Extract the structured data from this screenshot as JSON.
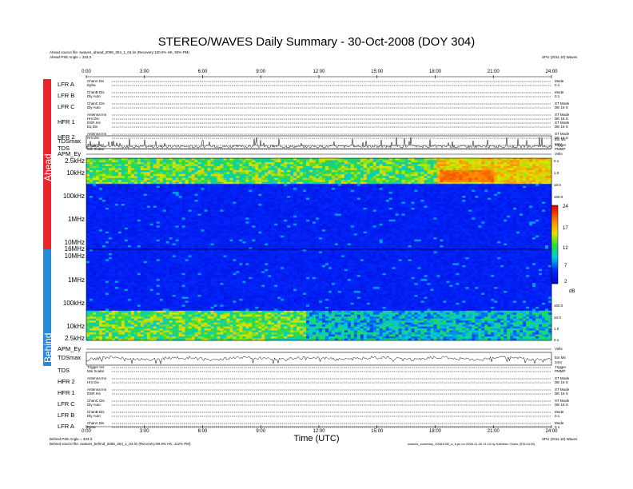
{
  "header": {
    "title": "STEREO/WAVES Daily Summary - 30-Oct-2008 (DOY 304)",
    "ahead_source": "Ahead source file: swaves_ahead_2008_304_1_04.lin (Recovery:100.0% HK, 93% PM)",
    "ahead_angle": "Ahead PSE Angle = 333.3",
    "ahead_version": "SPU (2011.10) Waves",
    "behind_angle": "Behind PSE Angle = 333.3",
    "behind_source": "Behind source file: swaves_behind_2008_304_1_04.lin (Recovery:99.9% HK, 112% PM)",
    "behind_version": "SPU (2011.10) Waves",
    "footer_note": "swaves_summary_20081030_a_b.ps on 2008-11-26 21:10 by Kathleen Goetz (SSL/UCB)",
    "xlabel": "Time (UTC)"
  },
  "strips": {
    "ahead": "Ahead",
    "behind": "Behind"
  },
  "colorbar": {
    "ticks": [
      "24",
      "17",
      "12",
      "7",
      "2"
    ],
    "unit": "dB"
  },
  "ahead_rows": [
    {
      "label": "LFR A",
      "lines": [
        "ChanA Dis",
        "Epha"
      ],
      "right": [
        "Mode",
        "0.1"
      ]
    },
    {
      "label": "LFR B",
      "lines": [
        "ChanB Dis",
        "Dly Auto"
      ],
      "right": [
        "Mode",
        "0.1"
      ]
    },
    {
      "label": "LFR C",
      "lines": [
        "ChanC Dis",
        "Dly Auto"
      ],
      "right": [
        "ST Mode",
        "DE 16 S"
      ]
    },
    {
      "label": "HFR 1",
      "lines": [
        "Antenna Ins",
        "Hrs Dis",
        "DSR Ins",
        "Eq Dis"
      ],
      "right": [
        "ST Mode",
        "DE 16 S",
        "ST Mode",
        "DE 16 S"
      ]
    },
    {
      "label": "HFR 2",
      "lines": [
        "Antenna Ins",
        "Hrs Dis"
      ],
      "right": [
        "ST Mode",
        "DE 16 S"
      ]
    },
    {
      "label": "TDS",
      "lines": [
        "Trigger Ins",
        "Min Scalar"
      ],
      "right": [
        "Trigger",
        "PMMP"
      ]
    }
  ],
  "behind_rows": [
    {
      "label": "TDS",
      "lines": [
        "Trigger Ins",
        "Min Scalar"
      ],
      "right": [
        "Trigger",
        "PMMP"
      ]
    },
    {
      "label": "HFR 2",
      "lines": [
        "Antenna Ins",
        "Hrs Dis"
      ],
      "right": [
        "ST Mode",
        "DE 16 S"
      ]
    },
    {
      "label": "HFR 1",
      "lines": [
        "Antenna Ins",
        "DSR Ins"
      ],
      "right": [
        "ST Mode",
        "DE 16 S"
      ]
    },
    {
      "label": "LFR C",
      "lines": [
        "ChanC Dis",
        "Dly Auto"
      ],
      "right": [
        "ST Mode",
        "DE 16 S"
      ]
    },
    {
      "label": "LFR B",
      "lines": [
        "ChanB Dis",
        "Dly Auto"
      ],
      "right": [
        "Mode",
        "0.1"
      ]
    },
    {
      "label": "LFR A",
      "lines": [
        "ChanA Dis",
        "Epha"
      ],
      "right": [
        "Mode",
        "0.1"
      ]
    }
  ],
  "line_panels": {
    "ahead_tdsmax": {
      "label": "TDSmax",
      "right": [
        "Ext Mx",
        "1mV"
      ]
    },
    "ahead_apm": {
      "label": "APM_Ey",
      "right": [
        "Volts"
      ]
    },
    "behind_apm": {
      "label": "APM_Ey",
      "right": [
        "Volts"
      ]
    },
    "behind_tdsmax": {
      "label": "TDSmax",
      "right": [
        "Ext Mx",
        "1mV"
      ]
    }
  },
  "spectra": {
    "ahead_freq_labels": [
      "2.5kHz",
      "10kHz",
      "100kHz",
      "1MHz",
      "10MHz",
      "16MHz"
    ],
    "behind_freq_labels": [
      "10MHz",
      "1MHz",
      "100kHz",
      "10kHz",
      "2.5kHz"
    ],
    "right_ticks": [
      "0.1",
      "1.0",
      "10.0",
      "100.0"
    ]
  },
  "chart_data": {
    "type": "heatmap",
    "title": "STEREO/WAVES Daily Summary - 30-Oct-2008 (DOY 304)",
    "xlabel": "Time (UTC)",
    "x_ticks": [
      "0:00",
      "3:00",
      "6:00",
      "9:00",
      "12:00",
      "15:00",
      "18:00",
      "21:00",
      "24:00"
    ],
    "xlim": [
      0,
      24
    ],
    "z_unit": "dB",
    "z_range": [
      2,
      24
    ],
    "panels": [
      "Ahead",
      "Behind"
    ]
  }
}
